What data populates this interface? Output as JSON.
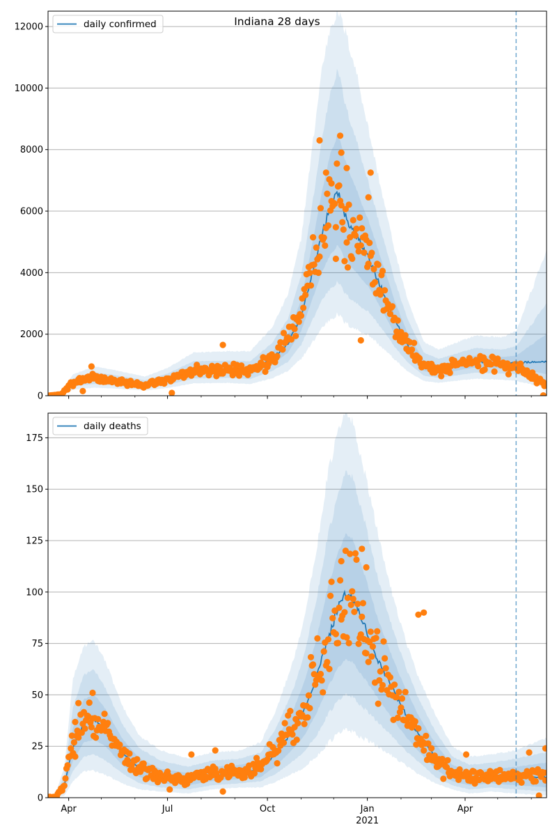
{
  "figure": {
    "title": "Indiana 28 days"
  },
  "colors": {
    "line": "#1f77b4",
    "points": "#ff7f0e",
    "band": "#1f77b4",
    "grid": "#b0b0b0",
    "vline": "#1f77b4"
  },
  "chart_data": [
    {
      "type": "line",
      "panel": "top",
      "legend_label": "daily confirmed",
      "legend_position": "top-left",
      "grid": "y",
      "xlim": [
        "2020-03-13",
        "2021-06-15"
      ],
      "ylim": [
        0,
        12500
      ],
      "yticks": [
        0,
        2000,
        4000,
        6000,
        8000,
        10000,
        12000
      ],
      "xticks": [
        {
          "date": "2020-04-01",
          "label": "Apr"
        },
        {
          "date": "2020-07-01",
          "label": "Jul"
        },
        {
          "date": "2020-10-01",
          "label": "Oct"
        },
        {
          "date": "2021-01-01",
          "label": "Jan"
        },
        {
          "date": "2021-04-01",
          "label": "Apr"
        }
      ],
      "year_label": "2021",
      "forecast_start": "2021-05-18",
      "line_keypoints": [
        [
          "2020-03-13",
          0
        ],
        [
          "2020-03-25",
          40
        ],
        [
          "2020-04-05",
          430
        ],
        [
          "2020-04-25",
          560
        ],
        [
          "2020-05-15",
          480
        ],
        [
          "2020-06-10",
          360
        ],
        [
          "2020-07-01",
          520
        ],
        [
          "2020-07-25",
          820
        ],
        [
          "2020-08-25",
          840
        ],
        [
          "2020-09-15",
          800
        ],
        [
          "2020-10-05",
          1200
        ],
        [
          "2020-10-20",
          1700
        ],
        [
          "2020-11-01",
          2600
        ],
        [
          "2020-11-10",
          3800
        ],
        [
          "2020-11-20",
          5200
        ],
        [
          "2020-11-28",
          6200
        ],
        [
          "2020-12-05",
          6600
        ],
        [
          "2020-12-12",
          5800
        ],
        [
          "2020-12-22",
          5200
        ],
        [
          "2021-01-03",
          4400
        ],
        [
          "2021-01-15",
          3400
        ],
        [
          "2021-01-27",
          2400
        ],
        [
          "2021-02-08",
          1600
        ],
        [
          "2021-02-22",
          960
        ],
        [
          "2021-03-08",
          860
        ],
        [
          "2021-03-22",
          960
        ],
        [
          "2021-04-10",
          1100
        ],
        [
          "2021-05-05",
          1060
        ],
        [
          "2021-05-18",
          1080
        ],
        [
          "2021-06-15",
          1100
        ]
      ],
      "band_keypoints": [
        [
          "2020-03-13",
          0,
          0,
          0,
          0,
          0,
          0
        ],
        [
          "2020-03-25",
          30,
          50,
          25,
          60,
          15,
          80
        ],
        [
          "2020-04-05",
          380,
          480,
          310,
          560,
          200,
          700
        ],
        [
          "2020-04-25",
          480,
          640,
          380,
          760,
          260,
          950
        ],
        [
          "2020-05-15",
          410,
          560,
          330,
          660,
          230,
          820
        ],
        [
          "2020-06-10",
          300,
          420,
          240,
          500,
          170,
          620
        ],
        [
          "2020-07-01",
          440,
          600,
          350,
          720,
          250,
          900
        ],
        [
          "2020-07-25",
          700,
          940,
          560,
          1120,
          400,
          1400
        ],
        [
          "2020-08-25",
          720,
          960,
          580,
          1140,
          420,
          1450
        ],
        [
          "2020-09-15",
          680,
          920,
          540,
          1120,
          380,
          1450
        ],
        [
          "2020-10-05",
          1000,
          1400,
          800,
          1700,
          560,
          2200
        ],
        [
          "2020-10-20",
          1400,
          2000,
          1100,
          2500,
          800,
          3300
        ],
        [
          "2020-11-01",
          2100,
          3100,
          1650,
          3900,
          1200,
          5100
        ],
        [
          "2020-11-10",
          3000,
          4700,
          2350,
          5900,
          1650,
          7700
        ],
        [
          "2020-11-20",
          4000,
          6600,
          3100,
          8300,
          2200,
          10600
        ],
        [
          "2020-11-28",
          4600,
          7900,
          3500,
          9900,
          2500,
          12000
        ],
        [
          "2020-12-05",
          4900,
          8500,
          3700,
          10600,
          2650,
          12500
        ],
        [
          "2020-12-12",
          4400,
          7600,
          3300,
          9400,
          2350,
          11800
        ],
        [
          "2020-12-22",
          4000,
          6700,
          3000,
          8300,
          2150,
          10500
        ],
        [
          "2021-01-03",
          3500,
          5600,
          2700,
          6800,
          1950,
          8500
        ],
        [
          "2021-01-15",
          2750,
          4300,
          2150,
          5200,
          1550,
          6500
        ],
        [
          "2021-01-27",
          1950,
          3000,
          1550,
          3650,
          1150,
          4600
        ],
        [
          "2021-02-08",
          1300,
          1950,
          1050,
          2400,
          760,
          3000
        ],
        [
          "2021-02-22",
          800,
          1150,
          650,
          1400,
          480,
          1750
        ],
        [
          "2021-03-08",
          720,
          1000,
          580,
          1200,
          420,
          1500
        ],
        [
          "2021-03-22",
          800,
          1120,
          650,
          1350,
          480,
          1700
        ],
        [
          "2021-04-10",
          920,
          1300,
          750,
          1550,
          550,
          1950
        ],
        [
          "2021-05-05",
          880,
          1260,
          720,
          1500,
          520,
          1900
        ],
        [
          "2021-05-18",
          880,
          1300,
          700,
          1600,
          480,
          2100
        ],
        [
          "2021-06-15",
          700,
          2000,
          450,
          3000,
          260,
          4700
        ]
      ],
      "observed_keypoints": [
        [
          "2020-03-13",
          0
        ],
        [
          "2020-03-25",
          40
        ],
        [
          "2020-04-05",
          440
        ],
        [
          "2020-04-25",
          580
        ],
        [
          "2020-05-15",
          480
        ],
        [
          "2020-06-10",
          340
        ],
        [
          "2020-07-01",
          520
        ],
        [
          "2020-07-25",
          820
        ],
        [
          "2020-08-25",
          850
        ],
        [
          "2020-09-15",
          800
        ],
        [
          "2020-10-05",
          1200
        ],
        [
          "2020-10-20",
          1750
        ],
        [
          "2020-11-01",
          2700
        ],
        [
          "2020-11-10",
          3900
        ],
        [
          "2020-11-20",
          5300
        ],
        [
          "2020-11-28",
          6200
        ],
        [
          "2020-12-05",
          6400
        ],
        [
          "2020-12-12",
          5700
        ],
        [
          "2020-12-22",
          5200
        ],
        [
          "2021-01-03",
          4500
        ],
        [
          "2021-01-15",
          3400
        ],
        [
          "2021-01-27",
          2400
        ],
        [
          "2021-02-08",
          1600
        ],
        [
          "2021-02-22",
          950
        ],
        [
          "2021-03-08",
          850
        ],
        [
          "2021-03-22",
          950
        ],
        [
          "2021-04-10",
          1100
        ],
        [
          "2021-05-05",
          1050
        ],
        [
          "2021-05-20",
          900
        ],
        [
          "2021-06-15",
          300
        ]
      ],
      "observed_outliers": [
        [
          "2020-04-14",
          150
        ],
        [
          "2020-04-22",
          950
        ],
        [
          "2020-07-05",
          90
        ],
        [
          "2020-08-21",
          1650
        ],
        [
          "2020-11-18",
          8300
        ],
        [
          "2020-11-24",
          7250
        ],
        [
          "2020-11-29",
          6900
        ],
        [
          "2020-12-03",
          4450
        ],
        [
          "2020-12-07",
          8450
        ],
        [
          "2020-12-08",
          7900
        ],
        [
          "2020-12-13",
          7400
        ],
        [
          "2020-12-26",
          1800
        ],
        [
          "2021-01-04",
          7250
        ],
        [
          "2021-01-02",
          6450
        ],
        [
          "2021-06-12",
          10
        ]
      ]
    },
    {
      "type": "line",
      "panel": "bottom",
      "legend_label": "daily deaths",
      "legend_position": "top-left",
      "grid": "y",
      "xlim": [
        "2020-03-13",
        "2021-06-15"
      ],
      "ylim": [
        0,
        187
      ],
      "yticks": [
        0,
        25,
        50,
        75,
        100,
        125,
        150,
        175
      ],
      "xticks": [
        {
          "date": "2020-04-01",
          "label": "Apr"
        },
        {
          "date": "2020-07-01",
          "label": "Jul"
        },
        {
          "date": "2020-10-01",
          "label": "Oct"
        },
        {
          "date": "2021-01-01",
          "label": "Jan"
        },
        {
          "date": "2021-04-01",
          "label": "Apr"
        }
      ],
      "year_label": "2021",
      "forecast_start": "2021-05-18",
      "line_keypoints": [
        [
          "2020-03-13",
          0
        ],
        [
          "2020-03-20",
          0
        ],
        [
          "2020-03-28",
          6
        ],
        [
          "2020-04-05",
          25
        ],
        [
          "2020-04-15",
          36
        ],
        [
          "2020-04-25",
          38
        ],
        [
          "2020-05-05",
          33
        ],
        [
          "2020-05-20",
          22
        ],
        [
          "2020-06-05",
          14
        ],
        [
          "2020-06-25",
          10
        ],
        [
          "2020-07-20",
          9
        ],
        [
          "2020-08-10",
          11
        ],
        [
          "2020-09-05",
          12
        ],
        [
          "2020-09-25",
          14
        ],
        [
          "2020-10-10",
          22
        ],
        [
          "2020-10-25",
          33
        ],
        [
          "2020-11-05",
          44
        ],
        [
          "2020-11-15",
          58
        ],
        [
          "2020-11-25",
          76
        ],
        [
          "2020-12-05",
          92
        ],
        [
          "2020-12-12",
          99
        ],
        [
          "2020-12-18",
          97
        ],
        [
          "2020-12-28",
          85
        ],
        [
          "2021-01-10",
          68
        ],
        [
          "2021-01-22",
          55
        ],
        [
          "2021-02-05",
          41
        ],
        [
          "2021-02-18",
          30
        ],
        [
          "2021-03-05",
          20
        ],
        [
          "2021-03-20",
          12
        ],
        [
          "2021-04-05",
          9
        ],
        [
          "2021-04-25",
          10
        ],
        [
          "2021-05-18",
          10
        ],
        [
          "2021-06-15",
          10
        ]
      ],
      "band_keypoints": [
        [
          "2020-03-13",
          0,
          0,
          0,
          0,
          0,
          0
        ],
        [
          "2020-03-20",
          0,
          1,
          0,
          1,
          0,
          2
        ],
        [
          "2020-03-28",
          4,
          8,
          3,
          11,
          1,
          15
        ],
        [
          "2020-04-05",
          18,
          34,
          13,
          44,
          8,
          58
        ],
        [
          "2020-04-15",
          27,
          48,
          20,
          60,
          13,
          74
        ],
        [
          "2020-04-25",
          28,
          50,
          21,
          62,
          13,
          76
        ],
        [
          "2020-05-05",
          25,
          43,
          18,
          53,
          11,
          66
        ],
        [
          "2020-05-20",
          16,
          29,
          12,
          36,
          7,
          45
        ],
        [
          "2020-06-05",
          10,
          19,
          7,
          24,
          4,
          30
        ],
        [
          "2020-06-25",
          7,
          14,
          5,
          18,
          3,
          23
        ],
        [
          "2020-07-20",
          6,
          12,
          4,
          15,
          2,
          19
        ],
        [
          "2020-08-10",
          8,
          15,
          6,
          18,
          4,
          22
        ],
        [
          "2020-09-05",
          9,
          16,
          7,
          19,
          5,
          23
        ],
        [
          "2020-09-25",
          10,
          18,
          8,
          22,
          5,
          27
        ],
        [
          "2020-10-10",
          16,
          29,
          12,
          35,
          8,
          44
        ],
        [
          "2020-10-25",
          24,
          43,
          18,
          53,
          12,
          67
        ],
        [
          "2020-11-05",
          31,
          58,
          23,
          72,
          15,
          90
        ],
        [
          "2020-11-15",
          41,
          77,
          30,
          96,
          20,
          120
        ],
        [
          "2020-11-25",
          53,
          101,
          40,
          126,
          26,
          156
        ],
        [
          "2020-12-05",
          63,
          119,
          47,
          147,
          31,
          178
        ],
        [
          "2020-12-12",
          67,
          128,
          50,
          158,
          33,
          187
        ],
        [
          "2020-12-18",
          66,
          126,
          49,
          156,
          32,
          183
        ],
        [
          "2020-12-28",
          59,
          111,
          44,
          138,
          29,
          162
        ],
        [
          "2021-01-10",
          49,
          88,
          37,
          108,
          25,
          130
        ],
        [
          "2021-01-22",
          40,
          71,
          31,
          86,
          21,
          103
        ],
        [
          "2021-02-05",
          30,
          53,
          23,
          64,
          16,
          77
        ],
        [
          "2021-02-18",
          22,
          39,
          17,
          47,
          11,
          57
        ],
        [
          "2021-03-05",
          14,
          26,
          10,
          32,
          7,
          40
        ],
        [
          "2021-03-20",
          8,
          16,
          6,
          20,
          4,
          25
        ],
        [
          "2021-04-05",
          6,
          13,
          4,
          16,
          2,
          20
        ],
        [
          "2021-04-25",
          7,
          14,
          5,
          17,
          3,
          21
        ],
        [
          "2021-05-18",
          6,
          15,
          4,
          19,
          2,
          23
        ],
        [
          "2021-06-15",
          5,
          17,
          3,
          22,
          1,
          29
        ]
      ],
      "observed_keypoints": [
        [
          "2020-03-13",
          0
        ],
        [
          "2020-03-20",
          0
        ],
        [
          "2020-03-28",
          6
        ],
        [
          "2020-04-05",
          28
        ],
        [
          "2020-04-15",
          37
        ],
        [
          "2020-04-25",
          38
        ],
        [
          "2020-05-05",
          33
        ],
        [
          "2020-05-20",
          21
        ],
        [
          "2020-06-05",
          15
        ],
        [
          "2020-06-25",
          10
        ],
        [
          "2020-07-20",
          9
        ],
        [
          "2020-08-10",
          12
        ],
        [
          "2020-09-05",
          12
        ],
        [
          "2020-09-25",
          15
        ],
        [
          "2020-10-10",
          24
        ],
        [
          "2020-10-25",
          35
        ],
        [
          "2020-11-05",
          45
        ],
        [
          "2020-11-15",
          60
        ],
        [
          "2020-11-25",
          80
        ],
        [
          "2020-12-05",
          95
        ],
        [
          "2020-12-12",
          100
        ],
        [
          "2020-12-18",
          96
        ],
        [
          "2020-12-28",
          84
        ],
        [
          "2021-01-10",
          66
        ],
        [
          "2021-01-22",
          53
        ],
        [
          "2021-02-05",
          40
        ],
        [
          "2021-02-18",
          28
        ],
        [
          "2021-03-05",
          18
        ],
        [
          "2021-03-20",
          12
        ],
        [
          "2021-04-05",
          10
        ],
        [
          "2021-04-25",
          11
        ],
        [
          "2021-05-18",
          10
        ],
        [
          "2021-06-15",
          12
        ]
      ],
      "observed_outliers": [
        [
          "2020-04-07",
          20
        ],
        [
          "2020-04-10",
          46
        ],
        [
          "2020-04-23",
          51
        ],
        [
          "2020-07-03",
          4
        ],
        [
          "2020-07-23",
          21
        ],
        [
          "2020-08-14",
          23
        ],
        [
          "2020-08-21",
          3
        ],
        [
          "2020-12-08",
          115
        ],
        [
          "2020-12-27",
          121
        ],
        [
          "2020-12-31",
          112
        ],
        [
          "2021-02-17",
          89
        ],
        [
          "2021-02-22",
          90
        ],
        [
          "2021-04-02",
          21
        ],
        [
          "2021-05-30",
          22
        ],
        [
          "2021-06-08",
          1
        ],
        [
          "2021-06-14",
          24
        ]
      ]
    }
  ]
}
